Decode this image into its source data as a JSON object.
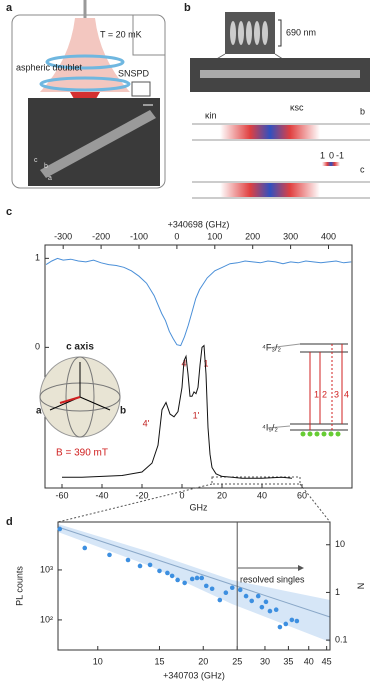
{
  "panel_a": {
    "label": "a",
    "temperature": "T = 20 mK",
    "detector": "SNSPD",
    "lens": "aspheric doublet",
    "axes": [
      "c",
      "b",
      "a"
    ]
  },
  "panel_b": {
    "label": "b",
    "width": "690 nm",
    "coupling_in": "κin",
    "coupling_sc": "κsc",
    "axis_top": "b",
    "axis_bottom": "c",
    "colorbar": [
      "1",
      "0",
      "-1"
    ]
  },
  "panel_c": {
    "label": "c",
    "inset": {
      "title": "c axis",
      "axis_a": "a",
      "axis_b": "b",
      "field": "B = 390 mT"
    },
    "peak_labels": [
      "4",
      "1",
      "4'",
      "1'"
    ],
    "levels": {
      "upper": "⁴F₃/₂",
      "lower": "⁴I₉/₂",
      "transitions": [
        "1",
        "2",
        "3",
        "4"
      ]
    }
  },
  "panel_d": {
    "label": "d",
    "annotation": "resolved singles"
  },
  "chart_data": [
    {
      "type": "line",
      "x_label": "+340698 (GHz)",
      "color": "#4a8fd8",
      "x": [
        -345,
        -330,
        -315,
        -300,
        -280,
        -260,
        -240,
        -220,
        -200,
        -180,
        -160,
        -140,
        -120,
        -100,
        -80,
        -60,
        -50,
        -40,
        -30,
        -20,
        -10,
        0,
        10,
        20,
        30,
        40,
        50,
        60,
        80,
        100,
        120,
        140,
        160,
        180,
        200,
        220,
        240,
        260,
        280,
        300,
        320,
        340,
        360,
        380,
        400,
        420,
        440,
        460
      ],
      "values": [
        0.93,
        0.97,
        1.0,
        0.98,
        0.99,
        0.97,
        0.96,
        0.98,
        0.95,
        0.93,
        0.92,
        0.9,
        0.86,
        0.8,
        0.72,
        0.58,
        0.48,
        0.38,
        0.3,
        0.18,
        0.1,
        0.03,
        0.02,
        0.12,
        0.25,
        0.4,
        0.55,
        0.65,
        0.78,
        0.86,
        0.9,
        0.94,
        0.95,
        0.97,
        0.96,
        0.95,
        0.97,
        0.96,
        0.94,
        0.96,
        0.95,
        0.97,
        0.96,
        0.95,
        0.96,
        0.97,
        0.95,
        0.96
      ],
      "xlim": [
        -348,
        462
      ],
      "xticks": [
        -300,
        -200,
        -100,
        0,
        100,
        200,
        300,
        400
      ],
      "ylim": [
        -1.58,
        1.15
      ],
      "yticks": [
        0,
        1
      ]
    },
    {
      "type": "line",
      "x_label": "GHz",
      "color": "#111111",
      "x": [
        -60,
        -50,
        -40,
        -30,
        -20,
        -15,
        -12,
        -10,
        -8,
        -6,
        -4,
        -2,
        0,
        1,
        2,
        3,
        4,
        5,
        6,
        7,
        8,
        9,
        10,
        11,
        12,
        13,
        14,
        15,
        17,
        20,
        25,
        30,
        40,
        50,
        55
      ],
      "values": [
        -1.46,
        -1.46,
        -1.45,
        -1.44,
        -1.4,
        -1.3,
        -1.1,
        -0.7,
        -0.62,
        -0.75,
        -0.78,
        -0.72,
        -0.45,
        -0.15,
        -0.1,
        -0.3,
        -0.55,
        -0.55,
        -0.5,
        -0.52,
        -0.45,
        -0.2,
        0,
        0.02,
        -0.3,
        -0.9,
        -1.2,
        -1.35,
        -1.42,
        -1.45,
        -1.46,
        -1.47,
        -1.47,
        -1.46,
        -1.47
      ],
      "xlim": [
        -68.5,
        85
      ],
      "xticks": [
        -60,
        -40,
        -20,
        0,
        20,
        40,
        60
      ],
      "ylim": [
        -1.58,
        1.15
      ]
    },
    {
      "type": "scatter",
      "x_label": "+340703 (GHz)",
      "y_label": "PL counts",
      "y2_label": "N",
      "color": "#3d8fe0",
      "x": [
        7.79,
        9.18,
        10.8,
        12.2,
        13.2,
        14.1,
        15.0,
        15.8,
        16.3,
        16.9,
        17.7,
        18.6,
        19.2,
        19.8,
        20.4,
        21.2,
        22.3,
        23.2,
        24.2,
        25.5,
        26.5,
        27.5,
        28.7,
        29.4,
        30.2,
        31.0,
        32.3,
        33.1,
        34.4,
        35.8,
        37.0
      ],
      "values": [
        6600,
        2750,
        2000,
        1580,
        1200,
        1260,
        955,
        870,
        760,
        630,
        550,
        660,
        690,
        690,
        480,
        420,
        250,
        350,
        440,
        400,
        300,
        240,
        300,
        180,
        230,
        150,
        160,
        72,
        83,
        100,
        95
      ],
      "xlim": [
        7.7,
        46
      ],
      "x_log": true,
      "xticks": [
        10,
        15,
        20,
        25,
        30,
        35,
        40,
        45
      ],
      "ylim": [
        25,
        9100
      ],
      "y_log": true,
      "yticks": [
        {
          "value": 100,
          "label": "10²"
        },
        {
          "value": 1000,
          "label": "10³"
        }
      ],
      "y2lim": [
        0.062,
        30
      ],
      "y2_log": true,
      "y2ticks": [
        0.1,
        1,
        10
      ],
      "threshold": 25
    }
  ]
}
